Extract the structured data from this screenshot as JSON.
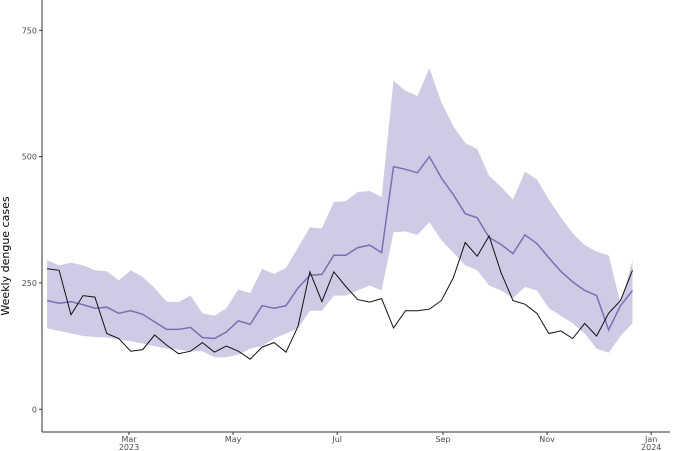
{
  "chart_data": {
    "type": "line",
    "title": "",
    "xlabel": "",
    "ylabel": "Weekly dengue cases",
    "ylim": [
      -45,
      810
    ],
    "xlim": [
      "2023-01-09",
      "2024-01-12"
    ],
    "grid": false,
    "legend": "none",
    "y_ticks": [
      0,
      250,
      500,
      750
    ],
    "x_ticks": [
      {
        "date": "2023-03-01",
        "label": "Mar",
        "sub": "2023"
      },
      {
        "date": "2023-05-01",
        "label": "May",
        "sub": ""
      },
      {
        "date": "2023-07-01",
        "label": "Jul",
        "sub": ""
      },
      {
        "date": "2023-09-01",
        "label": "Sep",
        "sub": ""
      },
      {
        "date": "2023-11-01",
        "label": "Nov",
        "sub": ""
      },
      {
        "date": "2024-01-01",
        "label": "Jan",
        "sub": "2024"
      }
    ],
    "colors": {
      "band": "#cfcbe4",
      "prediction": "#7a6fb5",
      "observed": "#111111",
      "axis": "#333333"
    },
    "x": [
      "2023-01-12",
      "2023-01-19",
      "2023-01-26",
      "2023-02-02",
      "2023-02-09",
      "2023-02-16",
      "2023-02-23",
      "2023-03-02",
      "2023-03-09",
      "2023-03-16",
      "2023-03-23",
      "2023-03-30",
      "2023-04-06",
      "2023-04-13",
      "2023-04-20",
      "2023-04-27",
      "2023-05-04",
      "2023-05-11",
      "2023-05-18",
      "2023-05-25",
      "2023-06-01",
      "2023-06-08",
      "2023-06-15",
      "2023-06-22",
      "2023-06-29",
      "2023-07-06",
      "2023-07-13",
      "2023-07-20",
      "2023-07-27",
      "2023-08-03",
      "2023-08-10",
      "2023-08-17",
      "2023-08-24",
      "2023-08-31",
      "2023-09-07",
      "2023-09-14",
      "2023-09-21",
      "2023-09-28",
      "2023-10-05",
      "2023-10-12",
      "2023-10-19",
      "2023-10-26",
      "2023-11-02",
      "2023-11-09",
      "2023-11-16",
      "2023-11-23",
      "2023-11-30",
      "2023-12-07",
      "2023-12-14",
      "2023-12-21"
    ],
    "series": [
      {
        "role": "band",
        "lower": [
          160,
          155,
          150,
          145,
          143,
          142,
          138,
          135,
          130,
          125,
          120,
          118,
          115,
          115,
          103,
          103,
          108,
          120,
          125,
          140,
          150,
          160,
          195,
          195,
          225,
          225,
          235,
          245,
          235,
          350,
          352,
          345,
          370,
          335,
          310,
          285,
          275,
          245,
          235,
          220,
          242,
          235,
          200,
          185,
          170,
          150,
          120,
          112,
          145,
          170
        ],
        "upper": [
          295,
          285,
          290,
          285,
          275,
          273,
          255,
          275,
          262,
          240,
          213,
          212,
          225,
          190,
          185,
          200,
          237,
          230,
          278,
          268,
          280,
          320,
          360,
          358,
          410,
          412,
          430,
          432,
          420,
          650,
          630,
          620,
          675,
          608,
          560,
          527,
          515,
          462,
          440,
          415,
          470,
          455,
          415,
          380,
          348,
          325,
          312,
          305,
          210,
          295
        ]
      },
      {
        "role": "prediction",
        "values": [
          215,
          210,
          213,
          207,
          200,
          202,
          190,
          195,
          188,
          173,
          158,
          158,
          162,
          142,
          140,
          153,
          175,
          168,
          205,
          200,
          205,
          240,
          265,
          267,
          305,
          305,
          320,
          325,
          310,
          480,
          475,
          468,
          500,
          458,
          425,
          387,
          379,
          340,
          326,
          308,
          345,
          328,
          300,
          273,
          252,
          235,
          225,
          157,
          205,
          235
        ]
      },
      {
        "role": "observed",
        "values": [
          278,
          275,
          187,
          225,
          222,
          150,
          140,
          115,
          118,
          147,
          127,
          110,
          115,
          132,
          113,
          125,
          115,
          99,
          123,
          132,
          113,
          164,
          272,
          213,
          272,
          243,
          217,
          212,
          219,
          161,
          195,
          195,
          198,
          215,
          260,
          330,
          303,
          343,
          270,
          215,
          208,
          190,
          150,
          155,
          140,
          170,
          145,
          190,
          215,
          275
        ]
      }
    ]
  }
}
